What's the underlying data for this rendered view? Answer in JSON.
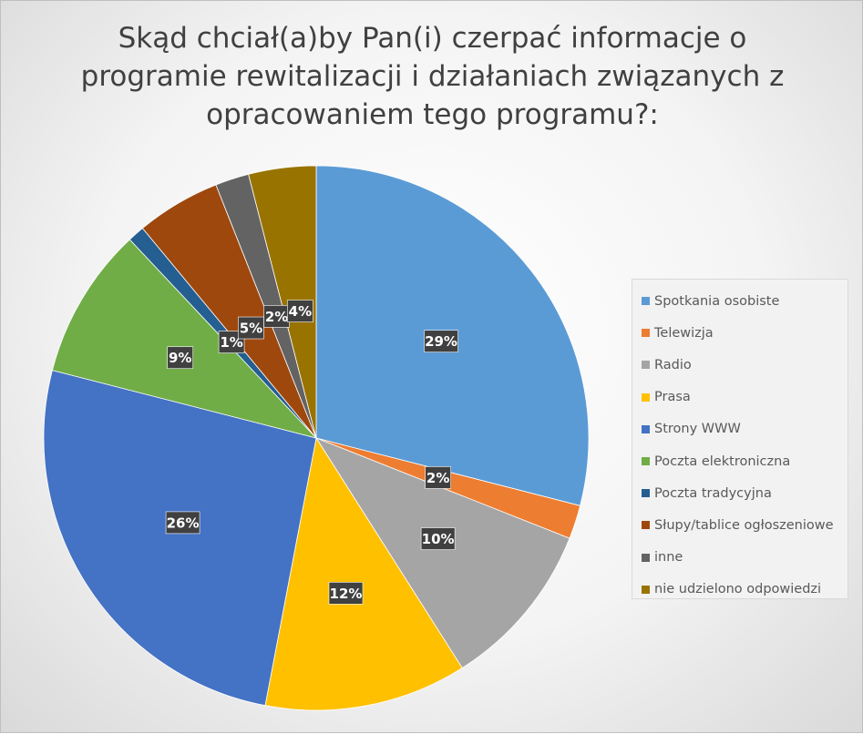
{
  "chart_data": {
    "type": "pie",
    "title": "Skąd chciał(a)by Pan(i) czerpać informacje o programie rewitalizacji i działaniach związanych z opracowaniem tego programu?:",
    "title_lines": [
      "Skąd chciał(a)by Pan(i) czerpać informacje o",
      "programie rewitalizacji i działaniach związanych z",
      "opracowaniem tego programu?:"
    ],
    "legend_position": "right",
    "slices": [
      {
        "label": "Spotkania osobiste",
        "value": 29,
        "display": "29%",
        "color": "#5B9BD5"
      },
      {
        "label": "Telewizja",
        "value": 2,
        "display": "2%",
        "color": "#ED7D31"
      },
      {
        "label": "Radio",
        "value": 10,
        "display": "10%",
        "color": "#A5A5A5"
      },
      {
        "label": "Prasa",
        "value": 12,
        "display": "12%",
        "color": "#FFC000"
      },
      {
        "label": "Strony WWW",
        "value": 26,
        "display": "26%",
        "color": "#4472C4"
      },
      {
        "label": "Poczta elektroniczna",
        "value": 9,
        "display": "9%",
        "color": "#70AD47"
      },
      {
        "label": "Poczta tradycyjna",
        "value": 1,
        "display": "1%",
        "color": "#255E91"
      },
      {
        "label": "Słupy/tablice ogłoszeniowe",
        "value": 5,
        "display": "5%",
        "color": "#9E480E"
      },
      {
        "label": "inne",
        "value": 2,
        "display": "2%",
        "color": "#636363"
      },
      {
        "label": "nie udzielono odpowiedzi",
        "value": 4,
        "display": "4%",
        "color": "#997300"
      }
    ]
  }
}
